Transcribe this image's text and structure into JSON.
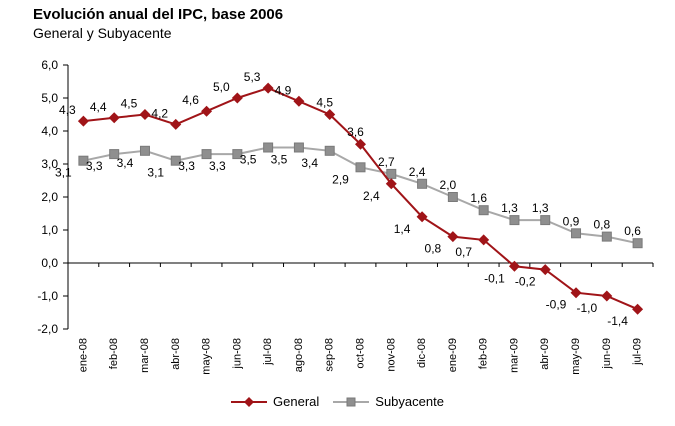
{
  "header": {
    "title": "Evolución anual del IPC, base 2006",
    "subtitle": "General y Subyacente"
  },
  "chart_data": {
    "type": "line",
    "title": "Evolución anual del IPC, base 2006",
    "subtitle": "General y Subyacente",
    "categories": [
      "ene-08",
      "feb-08",
      "mar-08",
      "abr-08",
      "may-08",
      "jun-08",
      "jul-08",
      "ago-08",
      "sep-08",
      "oct-08",
      "nov-08",
      "dic-08",
      "ene-09",
      "feb-09",
      "mar-09",
      "abr-09",
      "may-09",
      "jun-09",
      "jul-09"
    ],
    "y_axis": {
      "min": -2.0,
      "max": 6.0,
      "step": 1.0,
      "tick_labels": [
        "6,0",
        "5,0",
        "4,0",
        "3,0",
        "2,0",
        "1,0",
        "0,0",
        "-1,0",
        "-2,0"
      ]
    },
    "grid": false,
    "legend_position": "bottom",
    "series": [
      {
        "name": "General",
        "marker": "diamond",
        "color": "#A01418",
        "line_color": "#A01418",
        "values": [
          4.3,
          4.4,
          4.5,
          4.2,
          4.6,
          5.0,
          5.3,
          4.9,
          4.5,
          3.6,
          2.4,
          1.4,
          0.8,
          0.7,
          -0.1,
          -0.2,
          -0.9,
          -1.0,
          -1.4
        ],
        "labels": [
          "4,3",
          "4,4",
          "4,5",
          "4,2",
          "4,6",
          "5,0",
          "5,3",
          "4,9",
          "4,5",
          "3,6",
          "2,4",
          "1,4",
          "0,8",
          "0,7",
          "-0,1",
          "-0,2",
          "-0,9",
          "-1,0",
          "-1,4"
        ],
        "label_pos": [
          "al",
          "al",
          "al",
          "al",
          "al",
          "al",
          "al",
          "al",
          "a",
          "a",
          "bl",
          "bl",
          "bl",
          "bl",
          "bl",
          "bl",
          "bl",
          "bl",
          "bl"
        ]
      },
      {
        "name": "Subyacente",
        "marker": "square",
        "color": "#8F8F8F",
        "line_color": "#A8A8A8",
        "values": [
          3.1,
          3.3,
          3.4,
          3.1,
          3.3,
          3.3,
          3.5,
          3.5,
          3.4,
          2.9,
          2.7,
          2.4,
          2.0,
          1.6,
          1.3,
          1.3,
          0.9,
          0.8,
          0.6
        ],
        "labels": [
          "3,1",
          "3,3",
          "3,4",
          "3,1",
          "3,3",
          "3,3",
          "3,5",
          "3,5",
          "3,4",
          "2,9",
          "2,7",
          "2,4",
          "2,0",
          "1,6",
          "1,3",
          "1,3",
          "0,9",
          "0,8",
          "0,6"
        ],
        "label_pos": [
          "bl",
          "bl",
          "bl",
          "bl",
          "bl",
          "bl",
          "bl",
          "bl",
          "bl",
          "bl",
          "a",
          "a",
          "a",
          "a",
          "a",
          "a",
          "a",
          "a",
          "a"
        ]
      }
    ]
  }
}
